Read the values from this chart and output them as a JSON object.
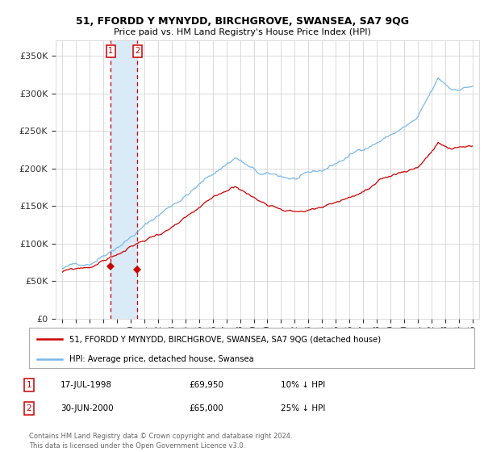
{
  "title": "51, FFORDD Y MYNYDD, BIRCHGROVE, SWANSEA, SA7 9QG",
  "subtitle": "Price paid vs. HM Land Registry's House Price Index (HPI)",
  "ylabel_ticks": [
    "£0",
    "£50K",
    "£100K",
    "£150K",
    "£200K",
    "£250K",
    "£300K",
    "£350K"
  ],
  "ytick_vals": [
    0,
    50000,
    100000,
    150000,
    200000,
    250000,
    300000,
    350000
  ],
  "ylim": [
    0,
    370000
  ],
  "xlim_start": 1994.5,
  "xlim_end": 2025.5,
  "hpi_color": "#7ab8e8",
  "hpi_shade_color": "#daeaf7",
  "price_color": "#cc0000",
  "dashed_color": "#cc0000",
  "transaction1": {
    "date": 1998.54,
    "price": 69950,
    "label": "1"
  },
  "transaction2": {
    "date": 2000.49,
    "price": 65000,
    "label": "2"
  },
  "legend_line1": "51, FFORDD Y MYNYDD, BIRCHGROVE, SWANSEA, SA7 9QG (detached house)",
  "legend_line2": "HPI: Average price, detached house, Swansea",
  "table_rows": [
    {
      "num": "1",
      "date": "17-JUL-1998",
      "price": "£69,950",
      "pct": "10% ↓ HPI"
    },
    {
      "num": "2",
      "date": "30-JUN-2000",
      "price": "£65,000",
      "pct": "25% ↓ HPI"
    }
  ],
  "footer": "Contains HM Land Registry data © Crown copyright and database right 2024.\nThis data is licensed under the Open Government Licence v3.0.",
  "background_color": "#ffffff"
}
